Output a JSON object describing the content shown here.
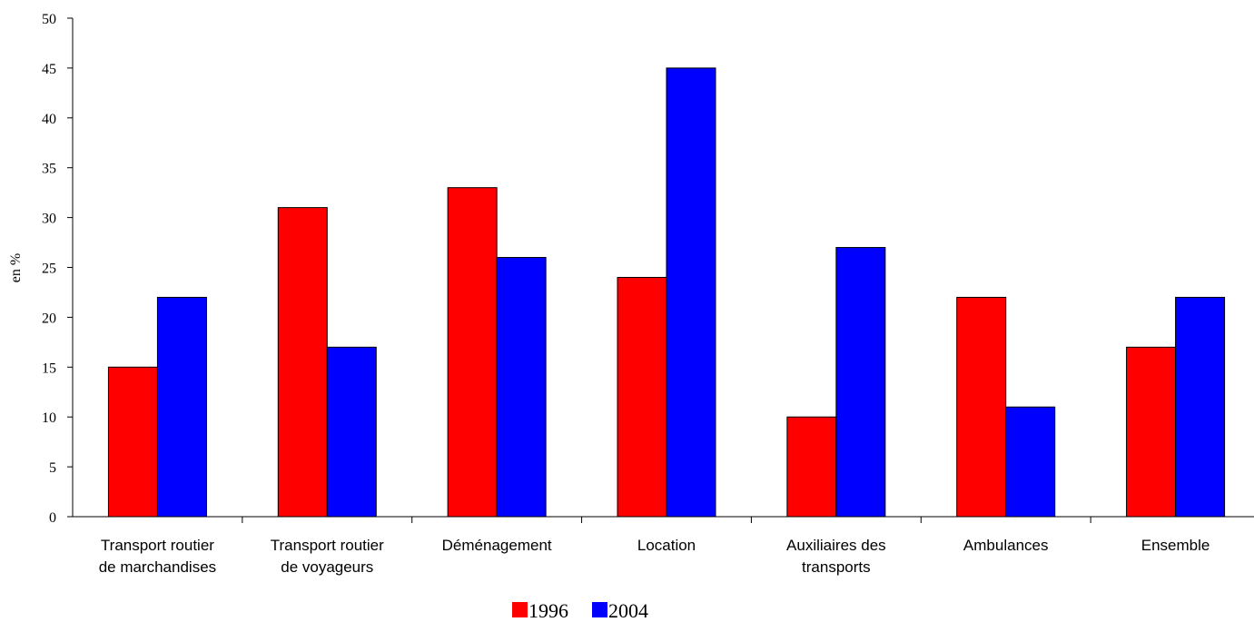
{
  "chart_data": {
    "type": "bar",
    "ylabel": "en %",
    "xlabel": "",
    "ylim": [
      0,
      50
    ],
    "yticks": [
      0,
      5,
      10,
      15,
      20,
      25,
      30,
      35,
      40,
      45,
      50
    ],
    "grid": false,
    "legend_position": "bottom-center",
    "categories": [
      [
        "Transport routier",
        "de marchandises"
      ],
      [
        "Transport routier",
        "de voyageurs"
      ],
      [
        "Déménagement"
      ],
      [
        "Location"
      ],
      [
        "Auxiliaires des",
        "transports"
      ],
      [
        "Ambulances"
      ],
      [
        "Ensemble"
      ]
    ],
    "series": [
      {
        "name": "1996",
        "color": "#ff0000",
        "values": [
          15,
          31,
          33,
          24,
          10,
          22,
          17
        ]
      },
      {
        "name": "2004",
        "color": "#0000ff",
        "values": [
          22,
          17,
          26,
          45,
          27,
          11,
          22
        ]
      }
    ]
  }
}
